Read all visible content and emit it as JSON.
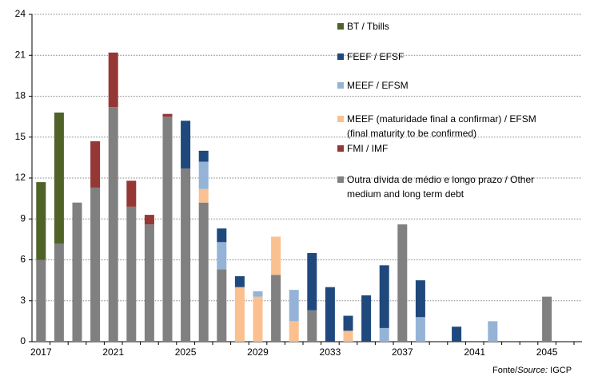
{
  "chart_data": {
    "type": "stacked_bar",
    "categories": [
      2017,
      null,
      null,
      null,
      2021,
      null,
      null,
      null,
      2025,
      null,
      null,
      null,
      2029,
      null,
      null,
      null,
      2033,
      null,
      null,
      null,
      2037,
      null,
      null,
      null,
      2041,
      null,
      null,
      null,
      2045,
      null,
      null
    ],
    "series": [
      {
        "name": "BT / Tbills",
        "color": "#4f6228",
        "values": [
          5.7,
          9.6,
          0,
          0,
          0,
          0,
          0,
          0,
          0,
          0,
          0,
          0,
          0,
          0,
          0,
          0,
          0,
          0,
          0,
          0,
          0,
          0,
          0,
          0,
          0,
          0,
          0,
          0,
          0,
          0,
          0
        ]
      },
      {
        "name": "FEEF / EFSF",
        "color": "#1f497d",
        "values": [
          0,
          0,
          0,
          0,
          0,
          0,
          0,
          0,
          3.5,
          0.8,
          1.0,
          0.8,
          0,
          0,
          0,
          4.2,
          4.0,
          1.1,
          3.4,
          4.6,
          0,
          2.7,
          0,
          1.1,
          0,
          0,
          0,
          0,
          0,
          0,
          0
        ]
      },
      {
        "name": "MEEF / EFSM",
        "color": "#95b3d7",
        "values": [
          0,
          0,
          0,
          0,
          0,
          0,
          0,
          0,
          0,
          2.0,
          2.0,
          0,
          0.4,
          0,
          2.3,
          0,
          0,
          0,
          0,
          1.0,
          0,
          1.8,
          0,
          0,
          0,
          1.5,
          0,
          0,
          0,
          0,
          0
        ]
      },
      {
        "name": "MEEF (maturidade final a confirmar) / EFSM (final maturity to be confirmed)",
        "color": "#fac090",
        "values": [
          0,
          0,
          0,
          0,
          0,
          0,
          0,
          0,
          0,
          1.0,
          0,
          4.0,
          3.3,
          2.8,
          1.5,
          0,
          0,
          0.8,
          0,
          0,
          0,
          0,
          0,
          0,
          0,
          0,
          0,
          0,
          0,
          0,
          0
        ]
      },
      {
        "name": "FMI / IMF",
        "color": "#953735",
        "values": [
          0,
          0,
          0,
          3.4,
          4.0,
          1.9,
          0.7,
          0.2,
          0,
          0,
          0,
          0,
          0,
          0,
          0,
          0,
          0,
          0,
          0,
          0,
          0,
          0,
          0,
          0,
          0,
          0,
          0,
          0,
          0,
          0,
          0
        ]
      },
      {
        "name": "Outra dívida de médio e longo prazo / Other medium and long term debt",
        "color": "#808080",
        "values": [
          6.0,
          7.2,
          10.2,
          11.3,
          17.2,
          9.9,
          8.6,
          16.5,
          12.7,
          10.2,
          5.3,
          0,
          0,
          4.9,
          0,
          2.3,
          0,
          0,
          0,
          0,
          8.6,
          0,
          0,
          0,
          0,
          0,
          0,
          0,
          3.3,
          0,
          0
        ]
      }
    ],
    "ylim": [
      0,
      24
    ],
    "yticks": [
      0,
      3,
      6,
      9,
      12,
      15,
      18,
      21,
      24
    ],
    "grid": true,
    "source": {
      "prefix": "Fonte/",
      "italic": "Source:",
      "name": " IGCP"
    }
  }
}
